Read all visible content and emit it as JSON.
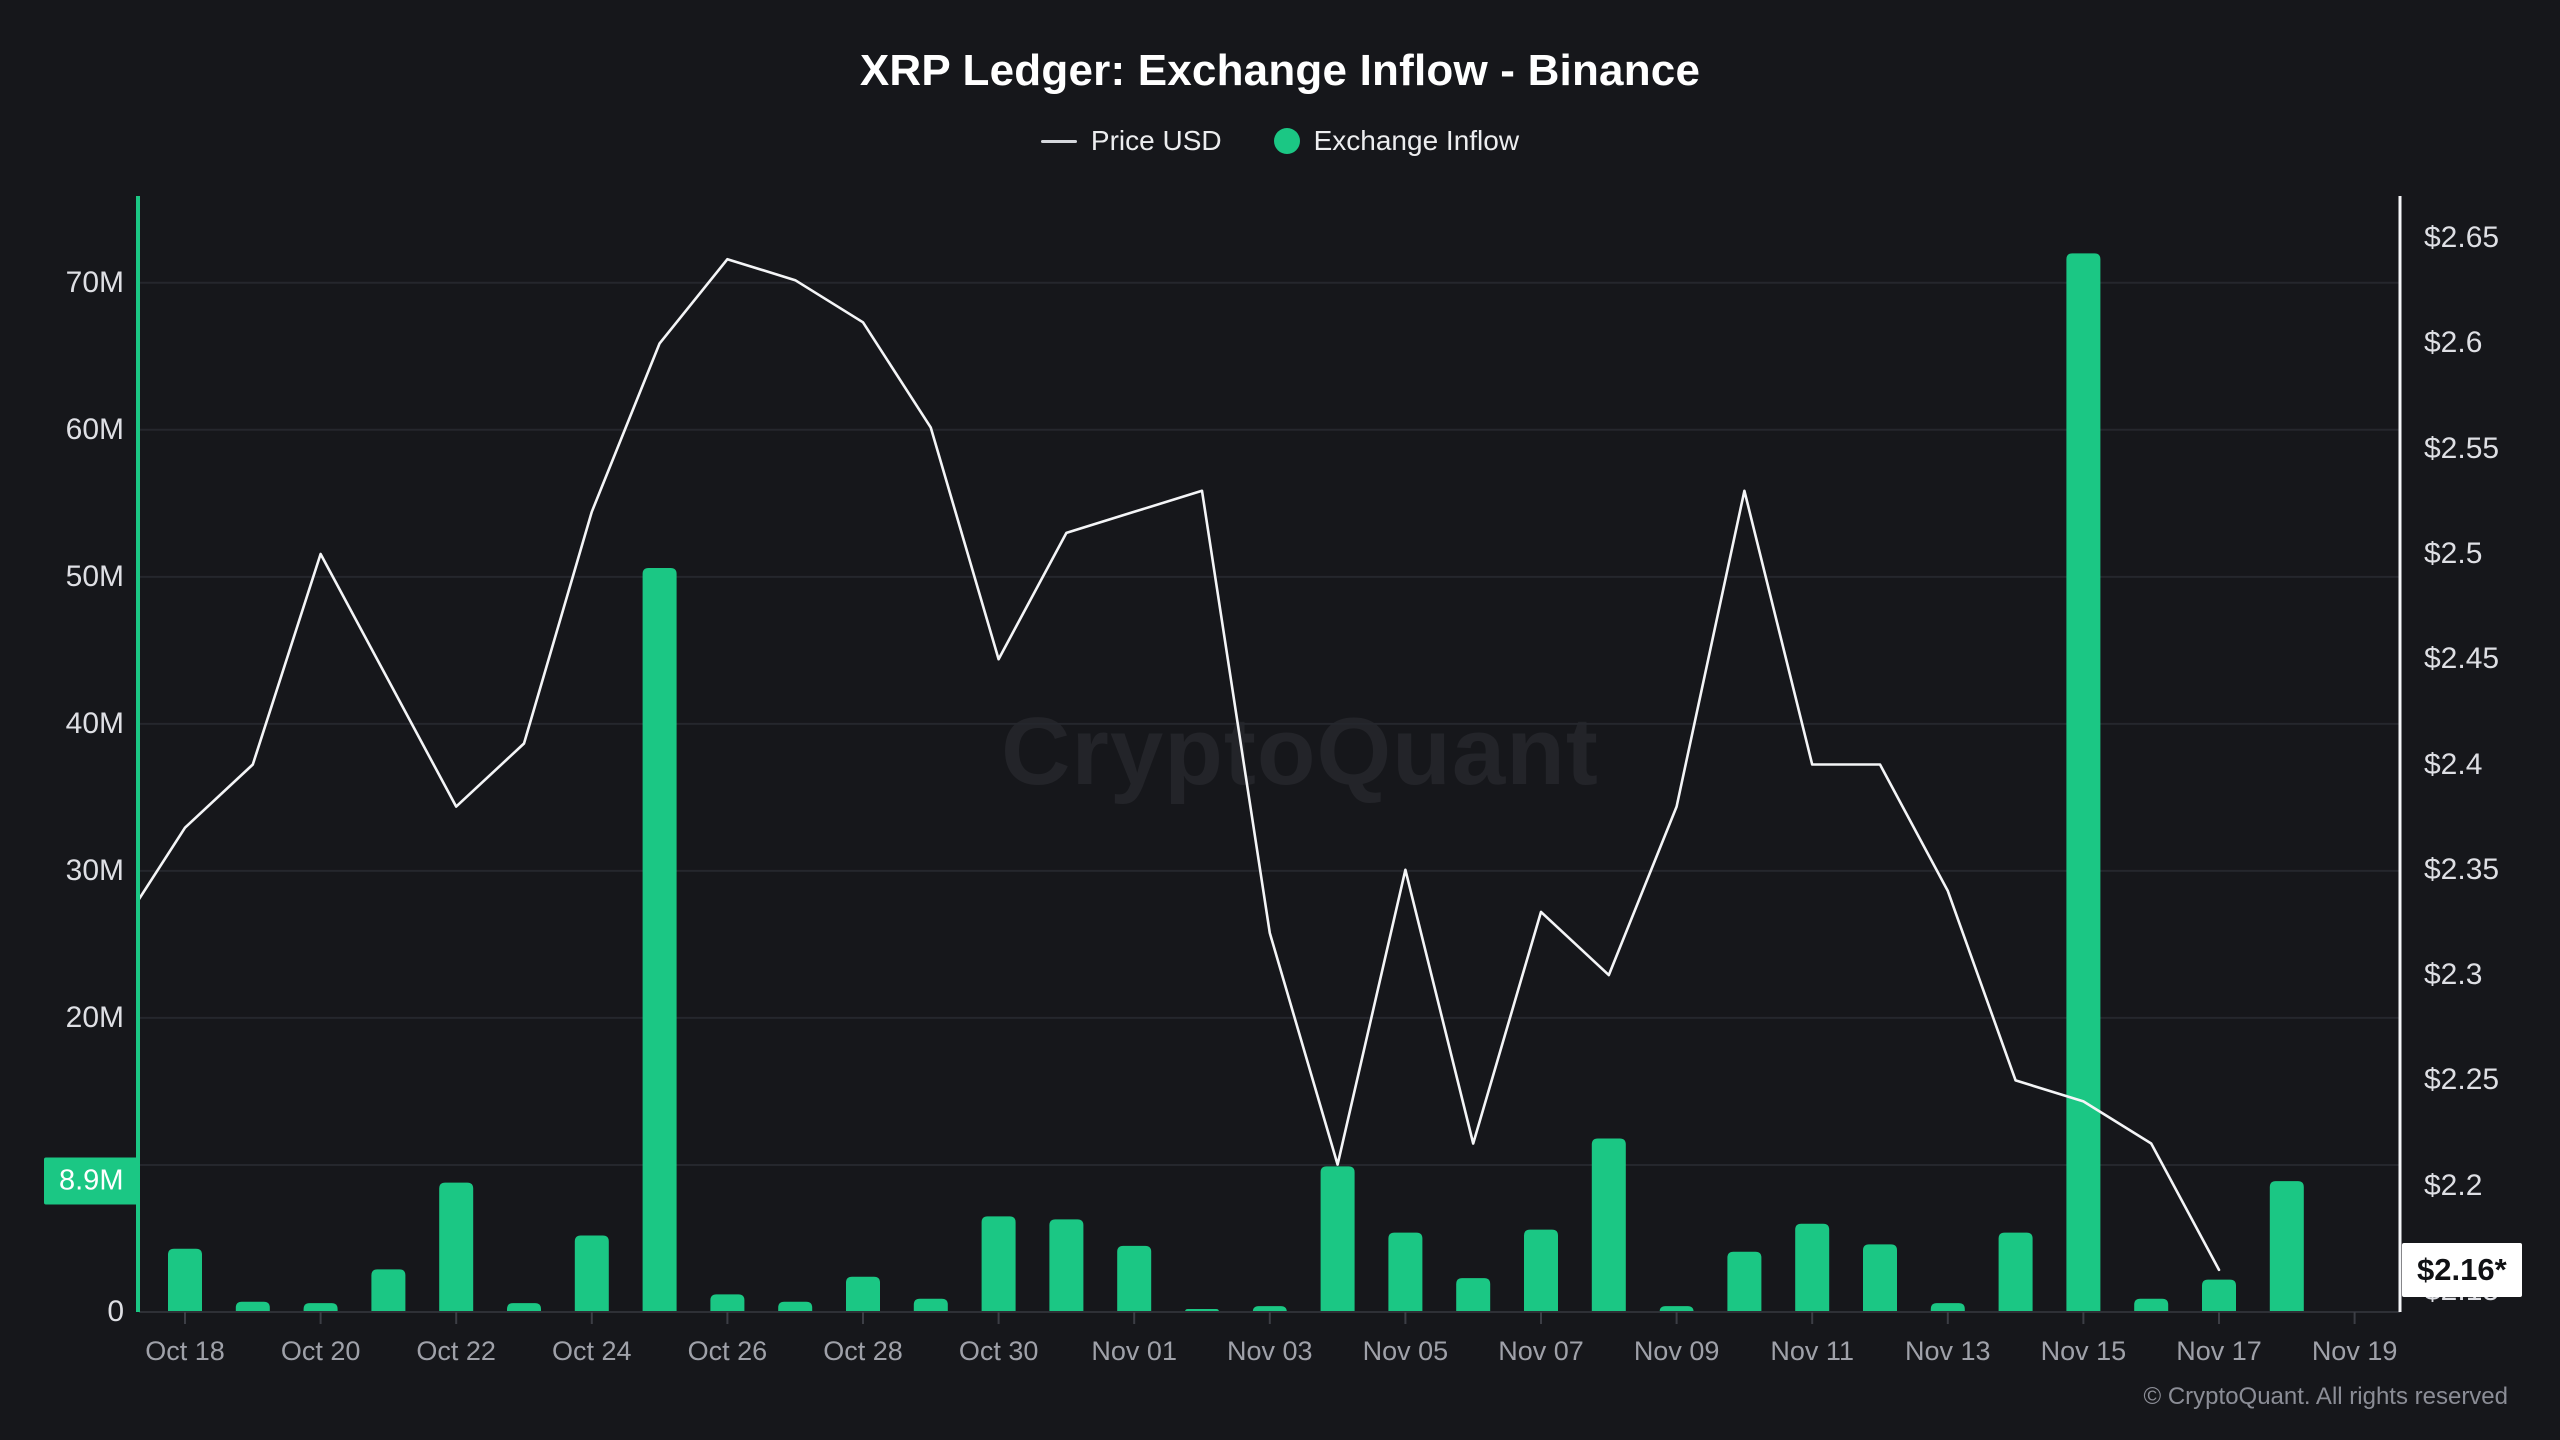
{
  "title": "XRP Ledger: Exchange Inflow - Binance",
  "legend": {
    "price_label": "Price USD",
    "inflow_label": "Exchange Inflow"
  },
  "watermark_text": "CryptoQuant",
  "footer_text": "© CryptoQuant. All rights reserved",
  "colors": {
    "background": "#16171B",
    "inflow_green": "#1BC784",
    "price_line": "#F4F5F7",
    "grid": "#25272D",
    "baseline": "#2E3036",
    "tick": "#3C3E45",
    "axis_label": "#DEDFE4",
    "x_label": "#9FA1A9",
    "watermark": "#232429",
    "inflow_badge_bg": "#1BC784",
    "inflow_badge_text": "#FFFFFF",
    "price_badge_bg": "#FFFFFF",
    "price_badge_text": "#101114",
    "footer": "#8B8D96"
  },
  "left_axis": {
    "unit": "M",
    "ticks": [
      {
        "label": "70M",
        "value": 70
      },
      {
        "label": "60M",
        "value": 60
      },
      {
        "label": "50M",
        "value": 50
      },
      {
        "label": "40M",
        "value": 40
      },
      {
        "label": "30M",
        "value": 30
      },
      {
        "label": "20M",
        "value": 20
      },
      {
        "label": "0",
        "value": 0
      }
    ],
    "gridline_values": [
      10,
      20,
      30,
      40,
      50,
      60,
      70
    ],
    "latest_badge": {
      "label": "8.9M",
      "value": 8.9
    }
  },
  "right_axis": {
    "unit": "USD",
    "ticks": [
      {
        "label": "$2.65",
        "value": 2.65
      },
      {
        "label": "$2.6",
        "value": 2.6
      },
      {
        "label": "$2.55",
        "value": 2.55
      },
      {
        "label": "$2.5",
        "value": 2.5
      },
      {
        "label": "$2.45",
        "value": 2.45
      },
      {
        "label": "$2.4",
        "value": 2.4
      },
      {
        "label": "$2.35",
        "value": 2.35
      },
      {
        "label": "$2.3",
        "value": 2.3
      },
      {
        "label": "$2.25",
        "value": 2.25
      },
      {
        "label": "$2.2",
        "value": 2.2
      },
      {
        "label": "$2.15",
        "value": 2.15
      }
    ],
    "latest_badge": {
      "label": "$2.16*",
      "value": 2.16
    }
  },
  "chart_data": {
    "type": "bar+line",
    "title": "XRP Ledger: Exchange Inflow - Binance",
    "categories": [
      "Oct 17",
      "Oct 18",
      "Oct 19",
      "Oct 20",
      "Oct 21",
      "Oct 22",
      "Oct 23",
      "Oct 24",
      "Oct 25",
      "Oct 26",
      "Oct 27",
      "Oct 28",
      "Oct 29",
      "Oct 30",
      "Oct 31",
      "Nov 01",
      "Nov 02",
      "Nov 03",
      "Nov 04",
      "Nov 05",
      "Nov 06",
      "Nov 07",
      "Nov 08",
      "Nov 09",
      "Nov 10",
      "Nov 11",
      "Nov 12",
      "Nov 13",
      "Nov 14",
      "Nov 15",
      "Nov 16",
      "Nov 17",
      "Nov 18",
      "Nov 19"
    ],
    "x_tick_labels": [
      "Oct 18",
      "Oct 20",
      "Oct 22",
      "Oct 24",
      "Oct 26",
      "Oct 28",
      "Oct 30",
      "Nov 01",
      "Nov 03",
      "Nov 05",
      "Nov 07",
      "Nov 09",
      "Nov 11",
      "Nov 13",
      "Nov 15",
      "Nov 17",
      "Nov 19"
    ],
    "series": [
      {
        "name": "Exchange Inflow",
        "type": "bar",
        "y_axis": "left",
        "unit": "M (XRP)",
        "color": "#1BC784",
        "values": [
          null,
          4.3,
          0.7,
          0.6,
          2.9,
          8.8,
          0.6,
          5.2,
          50.6,
          1.2,
          0.7,
          2.4,
          0.9,
          6.5,
          6.3,
          4.5,
          0.2,
          0.4,
          9.9,
          5.4,
          2.3,
          5.6,
          11.8,
          0.4,
          4.1,
          6.0,
          4.6,
          0.6,
          5.4,
          72.0,
          0.9,
          2.2,
          8.9,
          null
        ]
      },
      {
        "name": "Price USD",
        "type": "line",
        "y_axis": "right",
        "unit": "USD",
        "color": "#F4F5F7",
        "values": [
          2.32,
          2.37,
          2.4,
          2.5,
          2.44,
          2.38,
          2.41,
          2.52,
          2.6,
          2.64,
          2.63,
          2.61,
          2.56,
          2.45,
          2.51,
          2.52,
          2.53,
          2.32,
          2.21,
          2.35,
          2.22,
          2.33,
          2.3,
          2.38,
          2.53,
          2.4,
          2.4,
          2.34,
          2.25,
          2.24,
          2.22,
          2.16,
          null,
          null
        ]
      }
    ],
    "left_ylim": [
      0,
      75.9
    ],
    "right_ylim": [
      2.14,
      2.67
    ],
    "grid": "horizontal",
    "legend_position": "top",
    "latest_values": {
      "inflow": "8.9M",
      "price": "$2.16*"
    }
  }
}
